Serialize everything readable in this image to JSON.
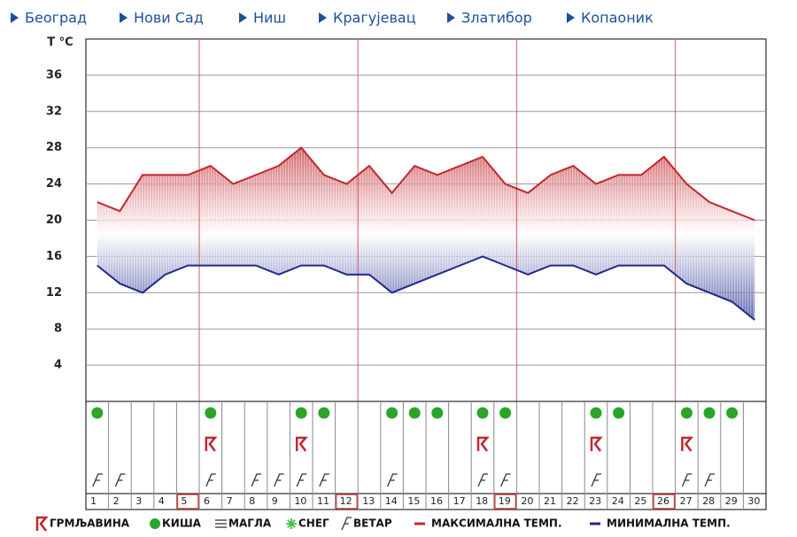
{
  "nav": [
    "Београд",
    "Нови Сад",
    "Ниш",
    "Крагујевац",
    "Златибор",
    "Копаоник"
  ],
  "chart_data": {
    "type": "line",
    "y_label": "T °C",
    "categories": [
      "1",
      "2",
      "3",
      "4",
      "5",
      "6",
      "7",
      "8",
      "9",
      "10",
      "11",
      "12",
      "13",
      "14",
      "15",
      "16",
      "17",
      "18",
      "19",
      "20",
      "21",
      "22",
      "23",
      "24",
      "25",
      "26",
      "27",
      "28",
      "29",
      "30"
    ],
    "series": [
      {
        "name": "МАКСИМАЛНА ТЕМП.",
        "color": "#c0272d",
        "values": [
          22,
          21,
          25,
          25,
          25,
          26,
          24,
          25,
          26,
          28,
          25,
          24,
          26,
          23,
          26,
          25,
          26,
          27,
          24,
          23,
          25,
          26,
          24,
          25,
          25,
          27,
          24,
          22,
          21,
          20
        ]
      },
      {
        "name": "МИНИМАЛНА ТЕМП.",
        "color": "#1f2a8c",
        "values": [
          15,
          13,
          12,
          14,
          15,
          15,
          15,
          15,
          14,
          15,
          15,
          14,
          14,
          12,
          13,
          14,
          15,
          16,
          15,
          14,
          15,
          15,
          14,
          15,
          15,
          15,
          13,
          12,
          11,
          9
        ]
      }
    ],
    "ylim": [
      0,
      40
    ],
    "yticks": [
      4,
      8,
      12,
      16,
      20,
      24,
      28,
      32,
      36
    ],
    "grid": true,
    "rain_days": [
      1,
      6,
      10,
      11,
      14,
      15,
      16,
      18,
      19,
      23,
      24,
      27,
      28,
      29
    ],
    "thunder_days": [
      6,
      10,
      18,
      23,
      27
    ],
    "wind_days": [
      1,
      2,
      6,
      8,
      9,
      10,
      11,
      14,
      18,
      19,
      23,
      27,
      28
    ],
    "highlight_days": [
      5,
      12,
      19,
      26
    ],
    "icon_legend": {
      "thunder": "ГРМЉАВИНА",
      "rain": "КИША",
      "fog": "МАГЛА",
      "snow": "СНЕГ",
      "wind": "ВЕТАР"
    }
  }
}
